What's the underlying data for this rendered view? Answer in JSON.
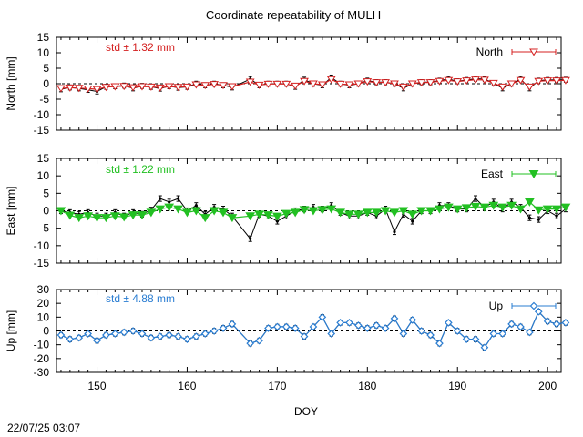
{
  "title": "Coordinate repeatability of MULH",
  "timestamp": "22/07/25 03:07",
  "chart_data": [
    {
      "type": "line",
      "panel": "north",
      "ylabel": "North [mm]",
      "ylim": [
        -15,
        15
      ],
      "yticks": [
        "15",
        "10",
        "5",
        "0",
        "-5",
        "-10",
        "-15"
      ],
      "std_label": "std ± 1.32 mm",
      "legend": "North",
      "legend_position": "top-right",
      "color": "#d42020",
      "xlim": [
        145.5,
        201.5
      ],
      "x": [
        146,
        147,
        148,
        149,
        150,
        151,
        152,
        153,
        154,
        155,
        156,
        157,
        158,
        159,
        160,
        161,
        162,
        163,
        164,
        165,
        167,
        168,
        169,
        170,
        171,
        172,
        173,
        174,
        175,
        176,
        177,
        178,
        179,
        180,
        181,
        182,
        183,
        184,
        185,
        186,
        187,
        188,
        189,
        190,
        191,
        192,
        193,
        194,
        195,
        196,
        197,
        198,
        199,
        200,
        201,
        202
      ],
      "y": [
        -1.8,
        -1.2,
        -1.5,
        -2,
        -2.5,
        -1,
        -0.8,
        -0.6,
        -1.5,
        -0.7,
        -1,
        -1.6,
        -0.8,
        -1.3,
        -1,
        0,
        -0.5,
        0,
        -0.5,
        -1.2,
        1.5,
        -0.5,
        0,
        0,
        0,
        -1,
        1.3,
        0,
        -0.5,
        2,
        0,
        -0.5,
        0,
        1,
        0.5,
        0.5,
        0,
        -1.5,
        0,
        0.5,
        0.5,
        1,
        1.5,
        0.8,
        1.2,
        1.6,
        1.5,
        0.2,
        -1.5,
        0,
        1.5,
        -1.5,
        1,
        1.2,
        1.2,
        1.3
      ],
      "model": [
        -1.5,
        -1.3,
        -1.4,
        -1.6,
        -1.8,
        -1.1,
        -0.9,
        -0.8,
        -1.2,
        -0.9,
        -1,
        -1.3,
        -0.9,
        -1.1,
        -1,
        -0.3,
        -0.5,
        -0.2,
        -0.5,
        -0.9,
        0.6,
        -0.4,
        -0.1,
        -0.1,
        -0.1,
        -0.7,
        0.8,
        0,
        -0.3,
        1.4,
        -0.1,
        -0.3,
        0,
        0.7,
        0.4,
        0.4,
        0,
        -1,
        0,
        0.4,
        0.4,
        0.8,
        1.1,
        0.7,
        1,
        1.3,
        1.2,
        0.2,
        -1,
        0,
        1.1,
        -1,
        0.8,
        1,
        1,
        1.1
      ],
      "err": 0.8
    },
    {
      "type": "line",
      "panel": "east",
      "ylabel": "East [mm]",
      "ylim": [
        -15,
        15
      ],
      "yticks": [
        "15",
        "10",
        "5",
        "0",
        "-5",
        "-10",
        "-15"
      ],
      "std_label": "std ± 1.22 mm",
      "legend": "East",
      "legend_position": "top-right",
      "color": "#22c022",
      "xlim": [
        145.5,
        201.5
      ],
      "x": [
        146,
        147,
        148,
        149,
        150,
        151,
        152,
        153,
        154,
        155,
        156,
        157,
        158,
        159,
        160,
        161,
        162,
        163,
        164,
        165,
        167,
        168,
        169,
        170,
        171,
        172,
        173,
        174,
        175,
        176,
        177,
        178,
        179,
        180,
        181,
        182,
        183,
        184,
        185,
        186,
        187,
        188,
        189,
        190,
        191,
        192,
        193,
        194,
        195,
        196,
        197,
        198,
        199,
        200,
        201,
        202
      ],
      "y": [
        0,
        -0.5,
        -1,
        -0.5,
        -1.5,
        -1.5,
        -0.5,
        -1.5,
        -0.5,
        -1,
        0.2,
        3.5,
        2.5,
        3.5,
        0,
        1.5,
        -1,
        1,
        0.5,
        -1.5,
        -8,
        -1,
        -1.5,
        -3,
        -1.5,
        0,
        0.5,
        1,
        0.5,
        1.5,
        -0.5,
        -1.5,
        -1.5,
        -0.5,
        -1.5,
        0.5,
        -6,
        -1,
        -3,
        0,
        0,
        1.5,
        1.5,
        0.5,
        0.5,
        3.5,
        1,
        2.5,
        0.5,
        2.5,
        1,
        -2,
        -2.5,
        0,
        -1.5,
        0.5
      ],
      "model": [
        0,
        -1.3,
        -2,
        -1.5,
        -2,
        -2,
        -1.5,
        -1.8,
        -1.2,
        -1.2,
        -0.5,
        0.5,
        1,
        0.5,
        -0.5,
        0,
        -2,
        0,
        -0.5,
        -2,
        -1.5,
        -1,
        -1.2,
        -1.6,
        -0.8,
        -0.5,
        0.3,
        0,
        0.3,
        0.5,
        -0.5,
        -1,
        -1,
        -0.5,
        -0.5,
        0,
        -0.5,
        0,
        -1,
        0,
        0,
        0.5,
        1,
        0.5,
        0.8,
        1.2,
        1,
        1.5,
        1,
        1.5,
        0.5,
        2.5,
        0.2,
        0.5,
        0.5,
        1
      ],
      "err": 0.8
    },
    {
      "type": "line",
      "panel": "up",
      "ylabel": "Up [mm]",
      "ylim": [
        -30,
        30
      ],
      "yticks": [
        "30",
        "20",
        "10",
        "0",
        "-10",
        "-20",
        "-30"
      ],
      "std_label": "std ± 4.88 mm",
      "legend": "Up",
      "legend_position": "top-right",
      "color": "#2a7dd2",
      "xlim": [
        145.5,
        201.5
      ],
      "x": [
        146,
        147,
        148,
        149,
        150,
        151,
        152,
        153,
        154,
        155,
        156,
        157,
        158,
        159,
        160,
        161,
        162,
        163,
        164,
        165,
        167,
        168,
        169,
        170,
        171,
        172,
        173,
        174,
        175,
        176,
        177,
        178,
        179,
        180,
        181,
        182,
        183,
        184,
        185,
        186,
        187,
        188,
        189,
        190,
        191,
        192,
        193,
        194,
        195,
        196,
        197,
        198,
        199,
        200,
        201,
        202
      ],
      "y": [
        -3,
        -6,
        -5,
        -2,
        -7,
        -3,
        -2,
        -1,
        0,
        -2,
        -5,
        -4,
        -3,
        -4,
        -6,
        -4,
        -2,
        0,
        2,
        5,
        -9,
        -7,
        2,
        3,
        3,
        2,
        -4,
        3,
        10,
        -2,
        6,
        6,
        4,
        2,
        4,
        2,
        9,
        -2,
        8,
        0,
        -3,
        -9,
        6,
        0,
        -6,
        -6,
        -12,
        -2,
        -2,
        5,
        3,
        -1,
        14,
        7,
        5,
        6
      ],
      "model": [
        -3,
        -6,
        -5,
        -2,
        -7,
        -3,
        -2,
        -1,
        0,
        -2,
        -5,
        -4,
        -3,
        -4,
        -6,
        -4,
        -2,
        0,
        2,
        5,
        -9,
        -7,
        2,
        3,
        3,
        2,
        -4,
        3,
        10,
        -2,
        6,
        6,
        4,
        2,
        4,
        2,
        9,
        -2,
        8,
        0,
        -3,
        -9,
        6,
        0,
        -6,
        -6,
        -12,
        -2,
        -2,
        5,
        3,
        -1,
        14,
        7,
        5,
        6
      ],
      "err": 1.8
    }
  ],
  "x_axis": {
    "label": "DOY",
    "ticks": [
      "150",
      "160",
      "170",
      "180",
      "190",
      "200"
    ],
    "tick_values": [
      150,
      160,
      170,
      180,
      190,
      200
    ]
  }
}
